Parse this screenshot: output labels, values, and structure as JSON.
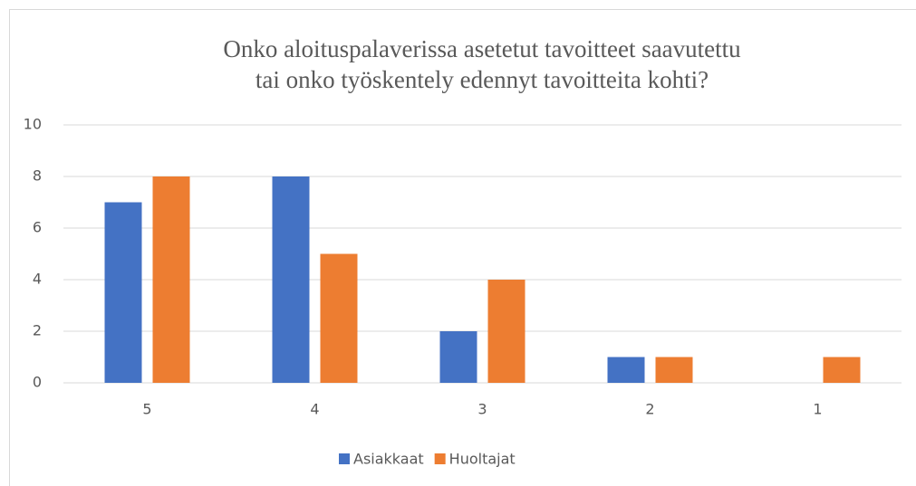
{
  "chart_data": {
    "type": "bar",
    "title": [
      "Onko aloituspalaverissa asetetut tavoitteet saavutettu",
      "tai onko työskentely edennyt tavoitteita kohti?"
    ],
    "categories": [
      "5",
      "4",
      "3",
      "2",
      "1"
    ],
    "series": [
      {
        "name": "Asiakkaat",
        "color": "#4472c4",
        "values": [
          7,
          8,
          2,
          1,
          0
        ]
      },
      {
        "name": "Huoltajat",
        "color": "#ed7d31",
        "values": [
          8,
          5,
          4,
          1,
          1
        ]
      }
    ],
    "ylim": [
      0,
      10
    ],
    "yticks": [
      0,
      2,
      4,
      6,
      8,
      10
    ],
    "grid": true,
    "legend": "bottom"
  }
}
